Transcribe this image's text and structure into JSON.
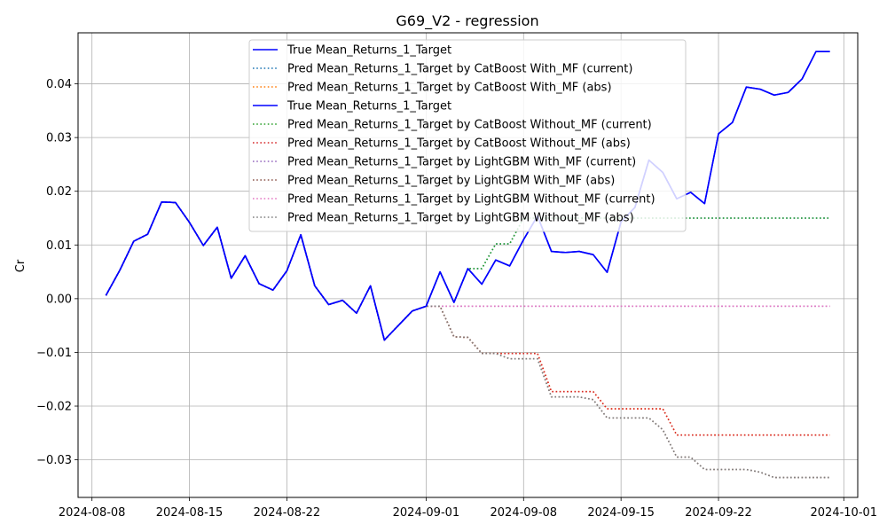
{
  "chart_data": {
    "type": "line",
    "title": "G69_V2 - regression",
    "xlabel": "",
    "ylabel": "Cr",
    "xlim": [
      "2024-08-07",
      "2024-10-02"
    ],
    "ylim": [
      -0.037,
      0.0495
    ],
    "grid": true,
    "legend_position": "top-center",
    "x_ticks": [
      "2024-08-08",
      "2024-08-15",
      "2024-08-22",
      "2024-09-01",
      "2024-09-08",
      "2024-09-15",
      "2024-09-22",
      "2024-10-01"
    ],
    "y_ticks": [
      -0.03,
      -0.02,
      -0.01,
      0.0,
      0.01,
      0.02,
      0.03,
      0.04
    ],
    "y_tick_labels": [
      "−0.03",
      "−0.02",
      "−0.01",
      "0.00",
      "0.01",
      "0.02",
      "0.03",
      "0.04"
    ],
    "x": [
      "2024-08-09",
      "2024-08-10",
      "2024-08-11",
      "2024-08-12",
      "2024-08-13",
      "2024-08-14",
      "2024-08-15",
      "2024-08-16",
      "2024-08-17",
      "2024-08-18",
      "2024-08-19",
      "2024-08-20",
      "2024-08-21",
      "2024-08-22",
      "2024-08-23",
      "2024-08-24",
      "2024-08-25",
      "2024-08-26",
      "2024-08-27",
      "2024-08-28",
      "2024-08-29",
      "2024-08-30",
      "2024-08-31",
      "2024-09-01",
      "2024-09-02",
      "2024-09-03",
      "2024-09-04",
      "2024-09-05",
      "2024-09-06",
      "2024-09-07",
      "2024-09-08",
      "2024-09-09",
      "2024-09-10",
      "2024-09-11",
      "2024-09-12",
      "2024-09-13",
      "2024-09-14",
      "2024-09-15",
      "2024-09-16",
      "2024-09-17",
      "2024-09-18",
      "2024-09-19",
      "2024-09-20",
      "2024-09-21",
      "2024-09-22",
      "2024-09-23",
      "2024-09-24",
      "2024-09-25",
      "2024-09-26",
      "2024-09-27",
      "2024-09-28",
      "2024-09-29",
      "2024-09-30"
    ],
    "series": [
      {
        "name": "True Mean_Returns_1_Target",
        "color": "#0000ff",
        "style": "solid",
        "values": [
          0.0006,
          0.0053,
          0.0107,
          0.012,
          0.018,
          0.0179,
          0.0142,
          0.0099,
          0.0133,
          0.0038,
          0.008,
          0.0028,
          0.0016,
          0.0052,
          0.0119,
          0.0024,
          -0.0011,
          -0.0003,
          -0.0027,
          0.0024,
          -0.0077,
          -0.005,
          -0.0023,
          -0.0014,
          0.005,
          -0.0007,
          0.0056,
          0.0027,
          0.0072,
          0.0061,
          0.011,
          0.0154,
          0.0088,
          0.0086,
          0.0088,
          0.0082,
          0.0049,
          0.0143,
          0.017,
          0.0258,
          0.0235,
          0.0186,
          0.0198,
          0.0177,
          0.0307,
          0.0328,
          0.0394,
          0.039,
          0.0379,
          0.0384,
          0.0409,
          0.046,
          0.046
        ]
      },
      {
        "name": "Pred Mean_Returns_1_Target by CatBoost With_MF (current)",
        "color": "#1f77b4",
        "style": "dotted",
        "values": [
          0.0006,
          0.0053,
          0.0107,
          0.012,
          0.018,
          0.0179,
          0.0142,
          0.0099,
          0.0133,
          0.0038,
          0.008,
          0.0028,
          0.0016,
          0.0052,
          0.0119,
          0.0024,
          -0.0011,
          -0.0003,
          -0.0027,
          0.0024,
          -0.0077,
          -0.005,
          -0.0023,
          -0.0014,
          0.005,
          -0.0007,
          0.0056,
          0.0056,
          0.0102,
          0.0102,
          0.015,
          0.015,
          0.015,
          0.015,
          0.015,
          0.015,
          0.015,
          0.015,
          0.015,
          0.015,
          0.015,
          0.015,
          0.015,
          0.015,
          0.015,
          0.015,
          0.015,
          0.015,
          0.015,
          0.015,
          0.015,
          0.015,
          0.015
        ]
      },
      {
        "name": "Pred Mean_Returns_1_Target by CatBoost With_MF (abs)",
        "color": "#ff7f0e",
        "style": "dotted",
        "values": [
          0.0006,
          0.0053,
          0.0107,
          0.012,
          0.018,
          0.0179,
          0.0142,
          0.0099,
          0.0133,
          0.0038,
          0.008,
          0.0028,
          0.0016,
          0.0052,
          0.0119,
          0.0024,
          -0.0011,
          -0.0003,
          -0.0027,
          0.0024,
          -0.0077,
          -0.005,
          -0.0023,
          -0.0014,
          -0.0014,
          -0.0071,
          -0.0072,
          -0.0102,
          -0.0102,
          -0.0102,
          -0.0102,
          -0.0102,
          -0.0173,
          -0.0173,
          -0.0173,
          -0.0173,
          -0.0205,
          -0.0205,
          -0.0205,
          -0.0205,
          -0.0205,
          -0.0254,
          -0.0254,
          -0.0254,
          -0.0254,
          -0.0254,
          -0.0254,
          -0.0254,
          -0.0254,
          -0.0254,
          -0.0254,
          -0.0254,
          -0.0254
        ]
      },
      {
        "name": "True Mean_Returns_1_Target",
        "color": "#0000ff",
        "style": "solid",
        "values": [
          0.0006,
          0.0053,
          0.0107,
          0.012,
          0.018,
          0.0179,
          0.0142,
          0.0099,
          0.0133,
          0.0038,
          0.008,
          0.0028,
          0.0016,
          0.0052,
          0.0119,
          0.0024,
          -0.0011,
          -0.0003,
          -0.0027,
          0.0024,
          -0.0077,
          -0.005,
          -0.0023,
          -0.0014,
          0.005,
          -0.0007,
          0.0056,
          0.0027,
          0.0072,
          0.0061,
          0.011,
          0.0154,
          0.0088,
          0.0086,
          0.0088,
          0.0082,
          0.0049,
          0.0143,
          0.017,
          0.0258,
          0.0235,
          0.0186,
          0.0198,
          0.0177,
          0.0307,
          0.0328,
          0.0394,
          0.039,
          0.0379,
          0.0384,
          0.0409,
          0.046,
          0.046
        ]
      },
      {
        "name": "Pred Mean_Returns_1_Target by CatBoost Without_MF (current)",
        "color": "#2ca02c",
        "style": "dotted",
        "values": [
          0.0006,
          0.0053,
          0.0107,
          0.012,
          0.018,
          0.0179,
          0.0142,
          0.0099,
          0.0133,
          0.0038,
          0.008,
          0.0028,
          0.0016,
          0.0052,
          0.0119,
          0.0024,
          -0.0011,
          -0.0003,
          -0.0027,
          0.0024,
          -0.0077,
          -0.005,
          -0.0023,
          -0.0014,
          0.005,
          -0.0007,
          0.0056,
          0.0056,
          0.0102,
          0.0102,
          0.015,
          0.015,
          0.015,
          0.015,
          0.015,
          0.015,
          0.015,
          0.015,
          0.015,
          0.015,
          0.015,
          0.015,
          0.015,
          0.015,
          0.015,
          0.015,
          0.015,
          0.015,
          0.015,
          0.015,
          0.015,
          0.015,
          0.015
        ]
      },
      {
        "name": "Pred Mean_Returns_1_Target by CatBoost Without_MF (abs)",
        "color": "#d62728",
        "style": "dotted",
        "values": [
          0.0006,
          0.0053,
          0.0107,
          0.012,
          0.018,
          0.0179,
          0.0142,
          0.0099,
          0.0133,
          0.0038,
          0.008,
          0.0028,
          0.0016,
          0.0052,
          0.0119,
          0.0024,
          -0.0011,
          -0.0003,
          -0.0027,
          0.0024,
          -0.0077,
          -0.005,
          -0.0023,
          -0.0014,
          -0.0014,
          -0.0071,
          -0.0072,
          -0.0102,
          -0.0102,
          -0.0102,
          -0.0102,
          -0.0102,
          -0.0173,
          -0.0173,
          -0.0173,
          -0.0173,
          -0.0205,
          -0.0205,
          -0.0205,
          -0.0205,
          -0.0205,
          -0.0254,
          -0.0254,
          -0.0254,
          -0.0254,
          -0.0254,
          -0.0254,
          -0.0254,
          -0.0254,
          -0.0254,
          -0.0254,
          -0.0254,
          -0.0254
        ]
      },
      {
        "name": "Pred Mean_Returns_1_Target by LightGBM With_MF (current)",
        "color": "#9467bd",
        "style": "dotted",
        "values": [
          0.0006,
          0.0053,
          0.0107,
          0.012,
          0.018,
          0.0179,
          0.0142,
          0.0099,
          0.0133,
          0.0038,
          0.008,
          0.0028,
          0.0016,
          0.0052,
          0.0119,
          0.0024,
          -0.0011,
          -0.0003,
          -0.0027,
          0.0024,
          -0.0077,
          -0.005,
          -0.0023,
          -0.0014,
          -0.0014,
          -0.0014,
          -0.0014,
          -0.0014,
          -0.0014,
          -0.0014,
          -0.0014,
          -0.0014,
          -0.0014,
          -0.0014,
          -0.0014,
          -0.0014,
          -0.0014,
          -0.0014,
          -0.0014,
          -0.0014,
          -0.0014,
          -0.0014,
          -0.0014,
          -0.0014,
          -0.0014,
          -0.0014,
          -0.0014,
          -0.0014,
          -0.0014,
          -0.0014,
          -0.0014,
          -0.0014,
          -0.0014
        ]
      },
      {
        "name": "Pred Mean_Returns_1_Target by LightGBM With_MF (abs)",
        "color": "#8c564b",
        "style": "dotted",
        "values": [
          0.0006,
          0.0053,
          0.0107,
          0.012,
          0.018,
          0.0179,
          0.0142,
          0.0099,
          0.0133,
          0.0038,
          0.008,
          0.0028,
          0.0016,
          0.0052,
          0.0119,
          0.0024,
          -0.0011,
          -0.0003,
          -0.0027,
          0.0024,
          -0.0077,
          -0.005,
          -0.0023,
          -0.0014,
          -0.0014,
          -0.0071,
          -0.0072,
          -0.0102,
          -0.0102,
          -0.0112,
          -0.0112,
          -0.0112,
          -0.0183,
          -0.0183,
          -0.0183,
          -0.0188,
          -0.0222,
          -0.0222,
          -0.0222,
          -0.0222,
          -0.0244,
          -0.0295,
          -0.0295,
          -0.0318,
          -0.0318,
          -0.0318,
          -0.0318,
          -0.0323,
          -0.0333,
          -0.0333,
          -0.0333,
          -0.0333,
          -0.0333
        ]
      },
      {
        "name": "Pred Mean_Returns_1_Target by LightGBM Without_MF (current)",
        "color": "#e377c2",
        "style": "dotted",
        "values": [
          0.0006,
          0.0053,
          0.0107,
          0.012,
          0.018,
          0.0179,
          0.0142,
          0.0099,
          0.0133,
          0.0038,
          0.008,
          0.0028,
          0.0016,
          0.0052,
          0.0119,
          0.0024,
          -0.0011,
          -0.0003,
          -0.0027,
          0.0024,
          -0.0077,
          -0.005,
          -0.0023,
          -0.0014,
          -0.0014,
          -0.0014,
          -0.0014,
          -0.0014,
          -0.0014,
          -0.0014,
          -0.0014,
          -0.0014,
          -0.0014,
          -0.0014,
          -0.0014,
          -0.0014,
          -0.0014,
          -0.0014,
          -0.0014,
          -0.0014,
          -0.0014,
          -0.0014,
          -0.0014,
          -0.0014,
          -0.0014,
          -0.0014,
          -0.0014,
          -0.0014,
          -0.0014,
          -0.0014,
          -0.0014,
          -0.0014,
          -0.0014
        ]
      },
      {
        "name": "Pred Mean_Returns_1_Target by LightGBM Without_MF (abs)",
        "color": "#7f7f7f",
        "style": "dotted",
        "values": [
          0.0006,
          0.0053,
          0.0107,
          0.012,
          0.018,
          0.0179,
          0.0142,
          0.0099,
          0.0133,
          0.0038,
          0.008,
          0.0028,
          0.0016,
          0.0052,
          0.0119,
          0.0024,
          -0.0011,
          -0.0003,
          -0.0027,
          0.0024,
          -0.0077,
          -0.005,
          -0.0023,
          -0.0014,
          -0.0014,
          -0.0071,
          -0.0072,
          -0.0102,
          -0.0102,
          -0.0112,
          -0.0112,
          -0.0112,
          -0.0183,
          -0.0183,
          -0.0183,
          -0.0188,
          -0.0222,
          -0.0222,
          -0.0222,
          -0.0222,
          -0.0244,
          -0.0295,
          -0.0295,
          -0.0318,
          -0.0318,
          -0.0318,
          -0.0318,
          -0.0323,
          -0.0333,
          -0.0333,
          -0.0333,
          -0.0333,
          -0.0333
        ]
      }
    ]
  }
}
